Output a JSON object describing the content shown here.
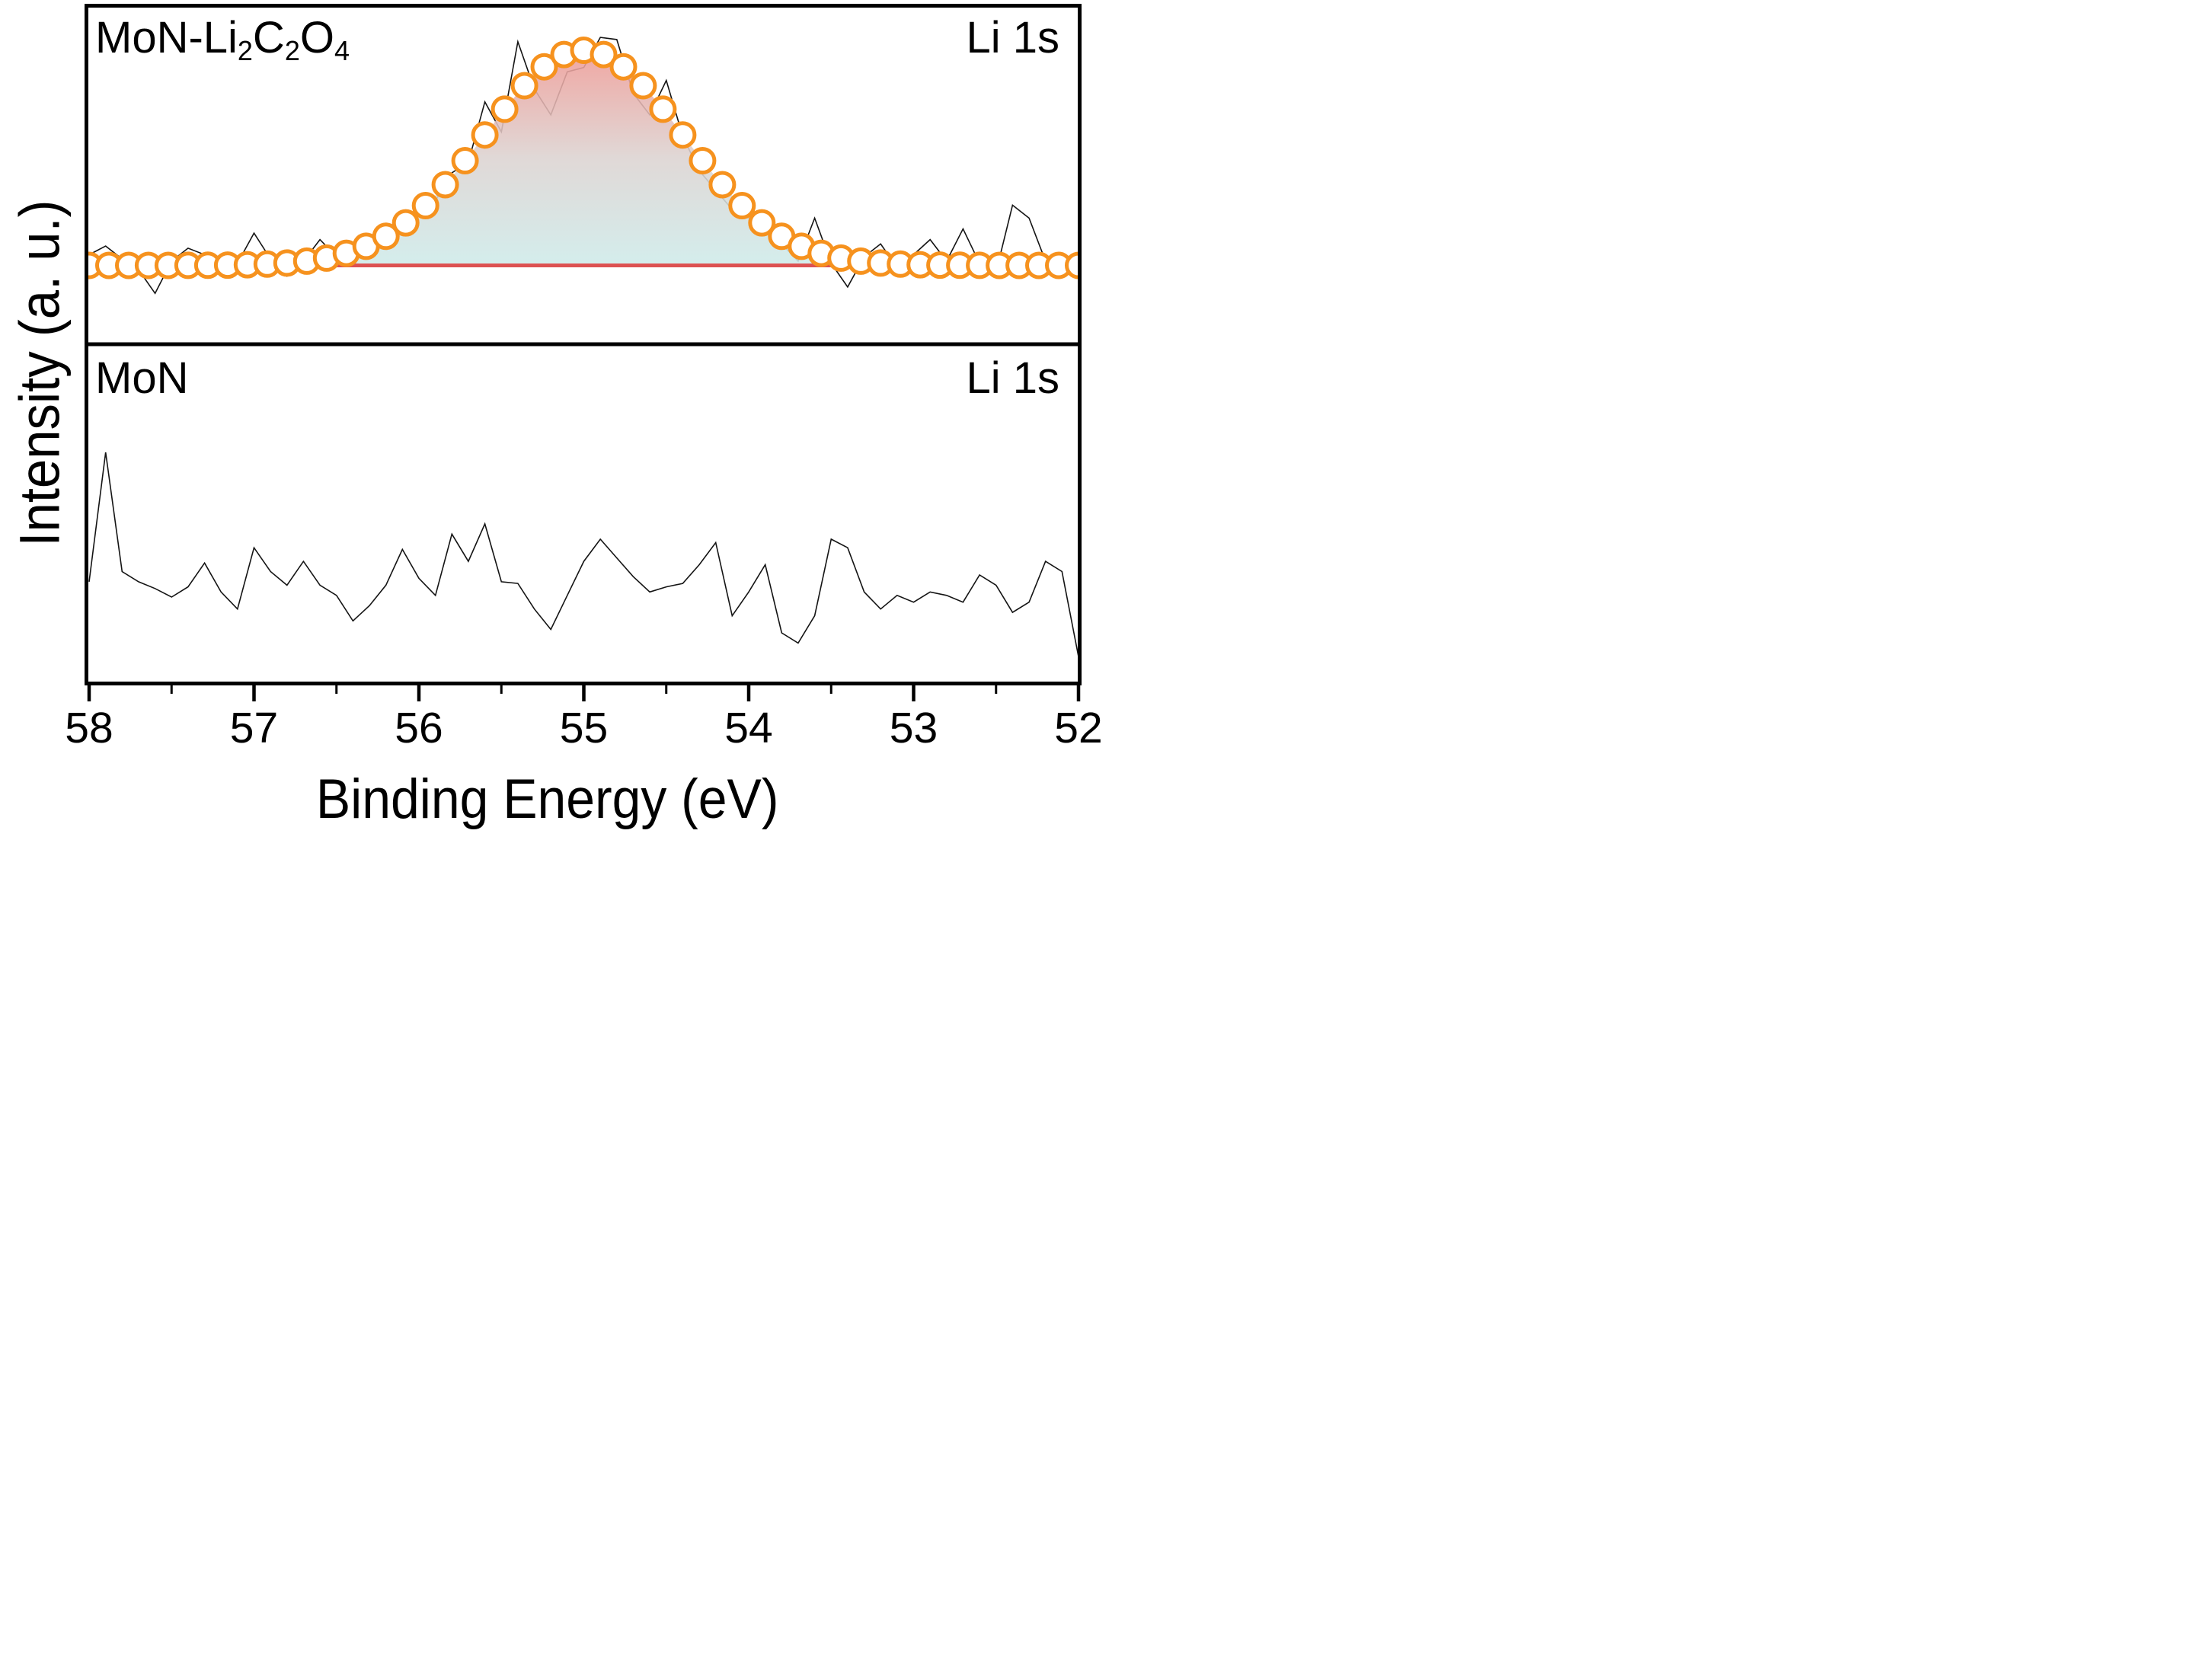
{
  "figure": {
    "x_axis_title": "Binding Energy (eV)",
    "y_axis_title": "Intensity (a. u.)"
  },
  "axis": {
    "x_title": "Binding Energy (eV)",
    "x_range": [
      58,
      52
    ],
    "x_ticks": [
      58,
      57,
      56,
      55,
      54,
      53,
      52
    ],
    "x_minor_step": 0.5,
    "x_reversed": true,
    "y_ticks": "none",
    "grid": "off",
    "legend": "none"
  },
  "panels": {
    "top": {
      "sample_label": "MoN-Li2C2O4",
      "sample_label_parts": [
        {
          "t": "MoN-Li"
        },
        {
          "s": "2"
        },
        {
          "t": "C"
        },
        {
          "s": "2"
        },
        {
          "t": "O"
        },
        {
          "s": "4"
        }
      ],
      "region_label": "Li 1s"
    },
    "bottom": {
      "sample_label": "MoN",
      "region_label": "Li 1s"
    }
  },
  "colors": {
    "marker_edge": "#F6921E",
    "marker_fill": "#FFFFFF",
    "fit_baseline": "#DD5152",
    "raw_line": "#141414",
    "frame": "#000000",
    "fill_gradient_top": "#EE9A95",
    "fill_gradient_mid": "#DCD3D1",
    "fill_gradient_bottom": "#CEEBEA",
    "fill_opacity": 0.88
  },
  "chart_data": [
    {
      "type": "line",
      "panel": "top",
      "sample": "MoN-Li2C2O4",
      "signal": "Li 1s",
      "xlabel": "Binding Energy (eV)",
      "ylabel": "Intensity (a. u.)",
      "x_start": 58.0,
      "x_end": 52.0,
      "x_step": -0.1,
      "y_unit": "normalized intensity (0 = background level, 1 = fitted peak height)",
      "raw_y": [
        0.05,
        0.09,
        0.03,
        -0.02,
        -0.13,
        0.02,
        0.08,
        0.05,
        -0.04,
        0.01,
        0.15,
        0.03,
        -0.05,
        0.02,
        0.12,
        0.04,
        0.1,
        0.06,
        0.18,
        0.16,
        0.28,
        0.3,
        0.43,
        0.48,
        0.76,
        0.62,
        1.04,
        0.82,
        0.7,
        0.9,
        0.92,
        1.06,
        1.05,
        0.8,
        0.7,
        0.86,
        0.6,
        0.44,
        0.35,
        0.26,
        0.22,
        0.15,
        0.1,
        0.02,
        0.22,
        0.01,
        -0.1,
        0.04,
        0.1,
        -0.01,
        0.05,
        0.12,
        0.02,
        0.17,
        0.01,
        -0.03,
        0.28,
        0.22,
        0.02,
        0.04,
        -0.02
      ],
      "fit": {
        "shape": "gaussian",
        "center_eV": 55.0,
        "sigma_eV": 0.6,
        "amplitude": 1.0,
        "background": 0.0,
        "marker_step_eV": 0.12
      },
      "fill_between_eV": [
        56.8,
        53.3
      ]
    },
    {
      "type": "line",
      "panel": "bottom",
      "sample": "MoN",
      "signal": "Li 1s",
      "xlabel": "Binding Energy (eV)",
      "ylabel": "Intensity (a. u.)",
      "x_start": 58.0,
      "x_end": 52.0,
      "x_step": -0.1,
      "y_unit": "fraction of panel height",
      "raw_y": [
        0.3,
        0.68,
        0.33,
        0.3,
        0.28,
        0.255,
        0.285,
        0.355,
        0.27,
        0.22,
        0.4,
        0.33,
        0.29,
        0.36,
        0.29,
        0.26,
        0.185,
        0.23,
        0.29,
        0.395,
        0.31,
        0.26,
        0.44,
        0.36,
        0.47,
        0.3,
        0.295,
        0.22,
        0.16,
        0.26,
        0.36,
        0.425,
        0.37,
        0.315,
        0.27,
        0.285,
        0.295,
        0.35,
        0.415,
        0.2,
        0.27,
        0.35,
        0.15,
        0.12,
        0.2,
        0.425,
        0.4,
        0.27,
        0.22,
        0.26,
        0.24,
        0.27,
        0.26,
        0.24,
        0.32,
        0.29,
        0.21,
        0.24,
        0.36,
        0.33,
        0.08
      ]
    }
  ]
}
